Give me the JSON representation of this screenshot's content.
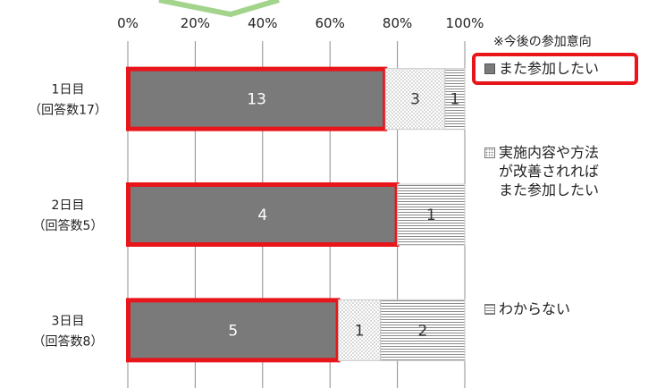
{
  "chart_data": {
    "type": "bar",
    "orientation": "horizontal",
    "stacked": true,
    "percent_stacked": true,
    "x_ticks": [
      "0%",
      "20%",
      "40%",
      "60%",
      "80%",
      "100%"
    ],
    "xlim": [
      0,
      100
    ],
    "grid": true,
    "categories": [
      {
        "line1": "1日目",
        "line2": "（回答数17）"
      },
      {
        "line1": "2日目",
        "line2": "（回答数5）"
      },
      {
        "line1": "3日目",
        "line2": "（回答数8）"
      }
    ],
    "series": [
      {
        "name": "また参加したい",
        "values": [
          13,
          4,
          5
        ],
        "labels": [
          "13",
          "4",
          "5"
        ],
        "color": "#7a7a7a",
        "pattern": "solid"
      },
      {
        "name": "実施内容や方法が改善されればまた参加したい",
        "values": [
          3,
          0,
          1
        ],
        "labels": [
          "3",
          "",
          "1"
        ],
        "color": "#ffffff",
        "pattern": "dots"
      },
      {
        "name": "わからない",
        "values": [
          1,
          1,
          2
        ],
        "labels": [
          "1",
          "1",
          "2"
        ],
        "color": "#ffffff",
        "pattern": "stripes"
      }
    ],
    "highlight_color": "#e8151a",
    "legend": {
      "title": "※今後の参加意向",
      "placement": "right",
      "items": [
        {
          "lines": [
            "また参加したい"
          ],
          "swatch": "dark"
        },
        {
          "lines": [
            "実施内容や方法",
            "が改善されれば",
            "また参加したい"
          ],
          "swatch": "dots"
        },
        {
          "lines": [
            "わからない"
          ],
          "swatch": "stripes"
        }
      ]
    }
  }
}
